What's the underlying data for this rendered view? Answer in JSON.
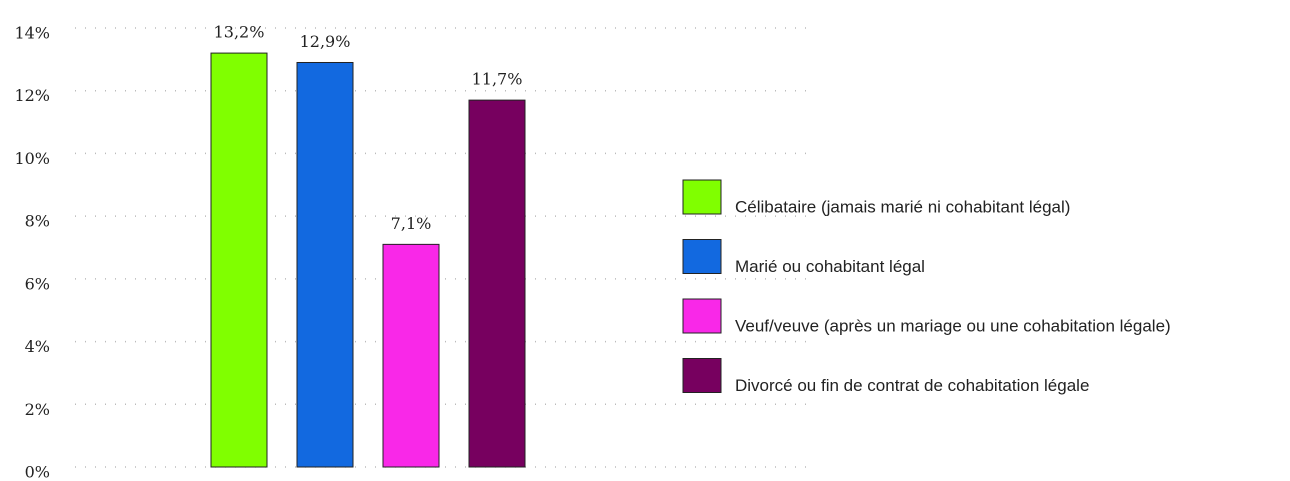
{
  "chart_data": {
    "type": "bar",
    "series": [
      {
        "name": "Célibataire (jamais marié ni cohabitant légal)",
        "color": "#80ff00",
        "values": [
          13.2
        ],
        "value_labels": [
          "13,2%"
        ]
      },
      {
        "name": "Marié ou cohabitant légal",
        "color": "#1269e0",
        "values": [
          12.9
        ],
        "value_labels": [
          "12,9%"
        ]
      },
      {
        "name": "Veuf/veuve (après un mariage ou une cohabitation légale)",
        "color": "#f928e8",
        "values": [
          7.1
        ],
        "value_labels": [
          "7,1%"
        ]
      },
      {
        "name": "Divorcé ou fin de contrat de cohabitation légale",
        "color": "#77005f",
        "values": [
          11.7
        ],
        "value_labels": [
          "11,7%"
        ]
      }
    ],
    "ylim": [
      0,
      14
    ],
    "yticks": [
      {
        "value": 0,
        "label": "0%"
      },
      {
        "value": 2,
        "label": "2%"
      },
      {
        "value": 4,
        "label": "4%"
      },
      {
        "value": 6,
        "label": "6%"
      },
      {
        "value": 8,
        "label": "8%"
      },
      {
        "value": 10,
        "label": "10%"
      },
      {
        "value": 12,
        "label": "12%"
      },
      {
        "value": 14,
        "label": "14%"
      }
    ],
    "grid": true,
    "legend": "right"
  }
}
